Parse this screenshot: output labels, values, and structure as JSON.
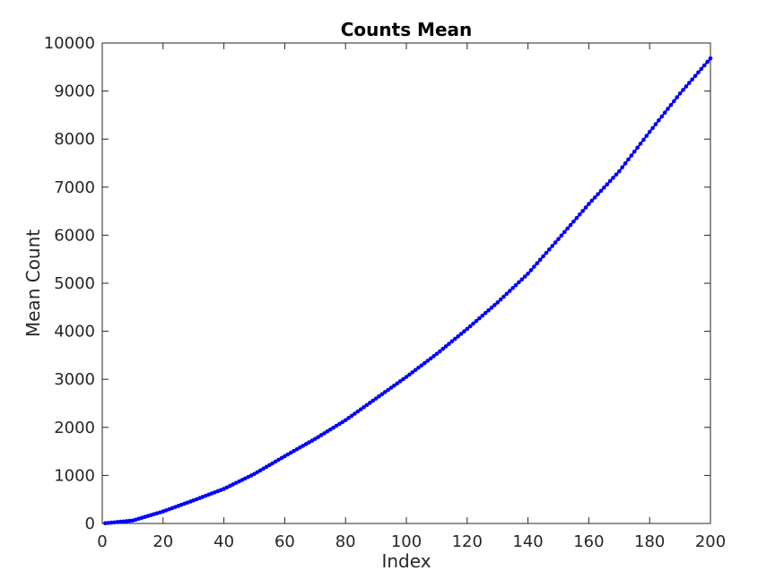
{
  "chart_data": {
    "type": "line",
    "title": "Counts Mean",
    "xlabel": "Index",
    "ylabel": "Mean Count",
    "xlim": [
      0,
      200
    ],
    "ylim": [
      0,
      10000
    ],
    "xticks": [
      0,
      20,
      40,
      60,
      80,
      100,
      120,
      140,
      160,
      180,
      200
    ],
    "yticks": [
      0,
      1000,
      2000,
      3000,
      4000,
      5000,
      6000,
      7000,
      8000,
      9000,
      10000
    ],
    "grid": false,
    "legend": "none",
    "series": [
      {
        "color": "#0000ff",
        "marker": "dot",
        "x": [
          1,
          10,
          20,
          30,
          40,
          50,
          60,
          70,
          80,
          90,
          100,
          110,
          120,
          130,
          140,
          150,
          160,
          170,
          180,
          190,
          200
        ],
        "y": [
          5,
          60,
          250,
          480,
          720,
          1030,
          1400,
          1760,
          2150,
          2600,
          3050,
          3530,
          4050,
          4600,
          5200,
          5920,
          6650,
          7330,
          8150,
          8950,
          9680
        ]
      }
    ]
  }
}
